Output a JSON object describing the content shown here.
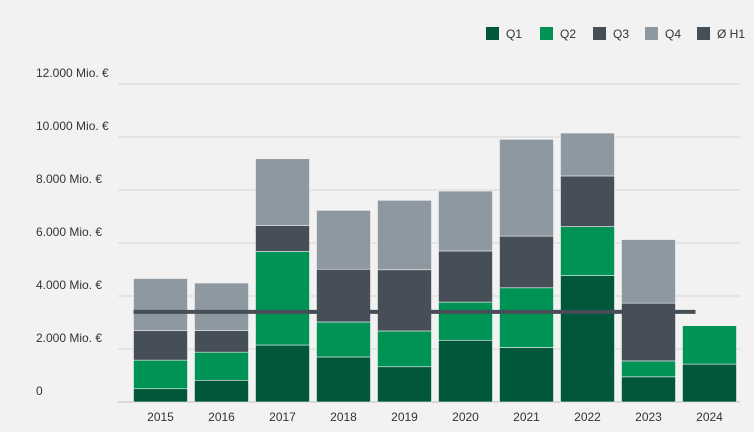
{
  "chart_data": {
    "type": "bar",
    "stacked": true,
    "categories": [
      "2015",
      "2016",
      "2017",
      "2018",
      "2019",
      "2020",
      "2021",
      "2022",
      "2023",
      "2024"
    ],
    "series": [
      {
        "name": "Q1",
        "color": "#00573a",
        "values": [
          500,
          820,
          2150,
          1700,
          1330,
          2330,
          2060,
          4770,
          950,
          1430
        ]
      },
      {
        "name": "Q2",
        "color": "#009356",
        "values": [
          1080,
          1060,
          3530,
          1320,
          1350,
          1440,
          2250,
          1850,
          600,
          1450
        ]
      },
      {
        "name": "Q3",
        "color": "#464e57",
        "values": [
          1110,
          820,
          980,
          1990,
          2310,
          1930,
          1950,
          1910,
          2180,
          0
        ]
      },
      {
        "name": "Q4",
        "color": "#8e98a1",
        "values": [
          1970,
          1790,
          2520,
          2220,
          2620,
          2260,
          3650,
          1620,
          2400,
          0
        ]
      }
    ],
    "average_line": {
      "name": "Ø H1",
      "color": "#464e57",
      "value": 3400
    },
    "y_ticks": [
      {
        "value": 0,
        "label": "0"
      },
      {
        "value": 2000,
        "label": "2.000 Mio. €"
      },
      {
        "value": 4000,
        "label": "4.000 Mio. €"
      },
      {
        "value": 6000,
        "label": "6.000 Mio. €"
      },
      {
        "value": 8000,
        "label": "8.000 Mio. €"
      },
      {
        "value": 10000,
        "label": "10.000 Mio. €"
      },
      {
        "value": 12000,
        "label": "12.000 Mio. €"
      }
    ],
    "ylim": [
      0,
      12000
    ],
    "grid": true,
    "legend_position": "top-right",
    "title": "",
    "xlabel": "",
    "ylabel": ""
  }
}
